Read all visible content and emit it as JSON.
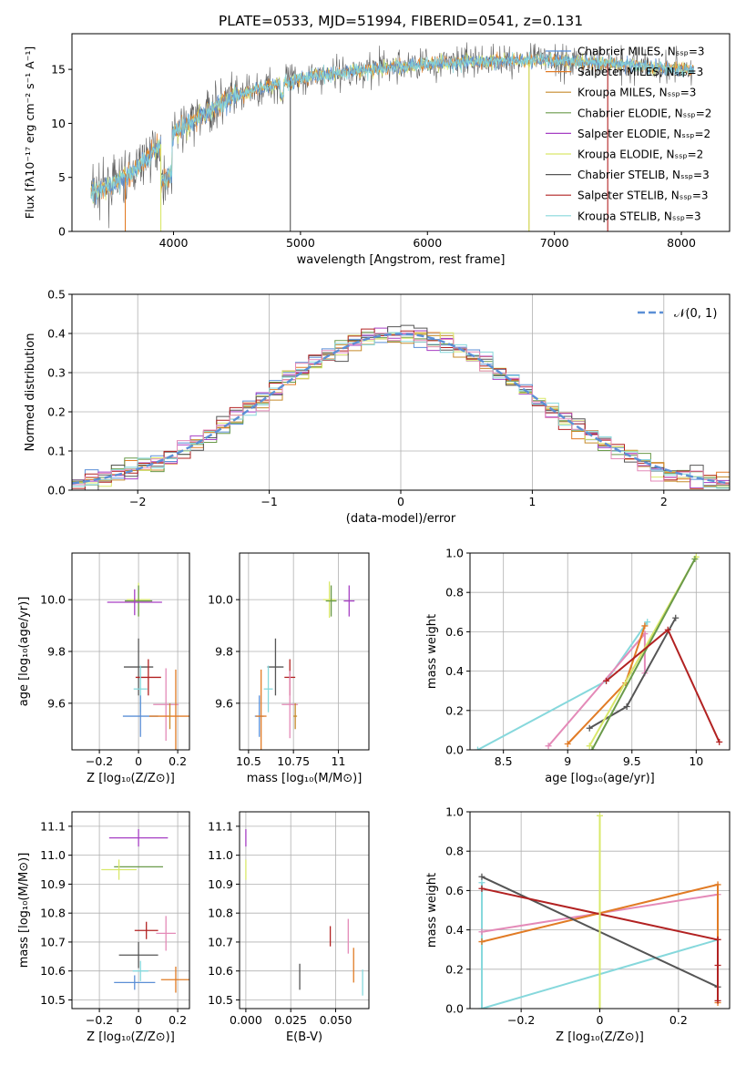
{
  "figure": {
    "title": "PLATE=0533, MJD=51994, FIBERID=0541, z=0.131",
    "colors": {
      "chabrier_miles": "#5b8fd6",
      "salpeter_miles": "#e17b25",
      "kroupa_miles": "#c58a2a",
      "chabrier_elodie": "#6a9a4a",
      "salpeter_elodie": "#a63fc4",
      "kroupa_elodie": "#d9e86a",
      "chabrier_stelib": "#555555",
      "salpeter_stelib": "#b22222",
      "kroupa_stelib": "#86d8dc",
      "pink": "#e48ab8",
      "normal": "#5b8fd6"
    }
  },
  "chart_data": [
    {
      "id": "spectrum",
      "type": "line",
      "xlabel": "wavelength [Angstrom, rest frame]",
      "ylabel": "Flux [fλ10⁻¹⁷ erg cm⁻² s⁻¹ A⁻¹]",
      "xlim": [
        3200,
        8380
      ],
      "ylim": [
        0,
        18.3
      ],
      "xticks": [
        4000,
        5000,
        6000,
        7000,
        8000
      ],
      "yticks": [
        0,
        5,
        10,
        15
      ],
      "legend_position": "top-right",
      "legend": [
        "Chabrier MILES, Nₛₛₚ=3",
        "Salpeter MILES, Nₛₛₚ=3",
        "Kroupa MILES, Nₛₛₚ=3",
        "Chabrier ELODIE, Nₛₛₚ=2",
        "Salpeter ELODIE, Nₛₛₚ=2",
        "Kroupa ELODIE, Nₛₛₚ=2",
        "Chabrier STELIB, Nₛₛₚ=3",
        "Salpeter STELIB, Nₛₛₚ=3",
        "Kroupa STELIB, Nₛₛₚ=3"
      ],
      "continuum": [
        [
          3350,
          3.6
        ],
        [
          3500,
          4.2
        ],
        [
          3650,
          5.2
        ],
        [
          3800,
          7.0
        ],
        [
          3950,
          8.6
        ],
        [
          4100,
          9.8
        ],
        [
          4300,
          11.3
        ],
        [
          4500,
          12.5
        ],
        [
          4700,
          13.3
        ],
        [
          4900,
          13.9
        ],
        [
          5100,
          14.4
        ],
        [
          5400,
          14.8
        ],
        [
          5700,
          15.2
        ],
        [
          6000,
          15.5
        ],
        [
          6300,
          15.7
        ],
        [
          6600,
          15.8
        ],
        [
          6900,
          15.9
        ],
        [
          7200,
          15.7
        ],
        [
          7500,
          15.5
        ],
        [
          7800,
          15.2
        ],
        [
          8100,
          14.9
        ]
      ],
      "dropouts": [
        [
          3620,
          0
        ],
        [
          3900,
          0
        ],
        [
          4920,
          0
        ],
        [
          6800,
          0
        ],
        [
          7420,
          0
        ]
      ]
    },
    {
      "id": "residuals",
      "type": "histogram",
      "xlabel": "(data-model)/error",
      "ylabel": "Normed distribution",
      "xlim": [
        -2.5,
        2.5
      ],
      "ylim": [
        0,
        0.5
      ],
      "xticks": [
        -2,
        -1,
        0,
        1,
        2
      ],
      "yticks": [
        0.0,
        0.1,
        0.2,
        0.3,
        0.4,
        0.5
      ],
      "legend": [
        "𝒩(0, 1)"
      ],
      "legend_position": "top-right",
      "bin_width": 0.1
    },
    {
      "id": "age_vs_Z",
      "type": "errorbar",
      "xlabel": "Z [log₁₀(Z/Z⊙)]",
      "ylabel": "age  [log₁₀(age/yr)]",
      "xlim": [
        -0.34,
        0.26
      ],
      "ylim": [
        9.42,
        10.18
      ],
      "xticks": [
        -0.2,
        0.0,
        0.2
      ],
      "yticks": [
        9.6,
        9.8,
        10.0
      ],
      "points": [
        {
          "c": "kroupa_elodie",
          "x": 0.0,
          "y": 10.0,
          "xe": 0.12,
          "ye": 0.13
        },
        {
          "c": "chabrier_elodie",
          "x": 0.0,
          "y": 9.995,
          "xe": 0.14,
          "ye": 0.12
        },
        {
          "c": "salpeter_elodie",
          "x": -0.02,
          "y": 9.99,
          "xe": 0.28,
          "ye": 0.1
        },
        {
          "c": "chabrier_stelib",
          "x": 0.0,
          "y": 9.74,
          "xe": 0.15,
          "ye": 0.22
        },
        {
          "c": "salpeter_stelib",
          "x": 0.05,
          "y": 9.7,
          "xe": 0.13,
          "ye": 0.14
        },
        {
          "c": "kroupa_stelib",
          "x": 0.01,
          "y": 9.655,
          "xe": 0.07,
          "ye": 0.18
        },
        {
          "c": "pink",
          "x": 0.14,
          "y": 9.595,
          "xe": 0.13,
          "ye": 0.28
        },
        {
          "c": "chabrier_miles",
          "x": 0.01,
          "y": 9.55,
          "xe": 0.18,
          "ye": 0.16
        },
        {
          "c": "salpeter_miles",
          "x": 0.19,
          "y": 9.55,
          "xe": 0.27,
          "ye": 0.36
        },
        {
          "c": "kroupa_miles",
          "x": 0.16,
          "y": 9.55,
          "xe": 0.0,
          "ye": 0.1
        }
      ]
    },
    {
      "id": "age_vs_mass",
      "type": "errorbar",
      "xlabel": "mass [log₁₀(M/M⊙)]",
      "ylabel": "",
      "xlim": [
        10.45,
        11.17
      ],
      "ylim": [
        9.42,
        10.18
      ],
      "xticks": [
        10.5,
        10.75,
        11.0
      ],
      "yticks": [
        9.6,
        9.8,
        10.0
      ],
      "points": [
        {
          "c": "kroupa_elodie",
          "x": 10.95,
          "y": 10.0,
          "xe": 0.07,
          "ye": 0.14
        },
        {
          "c": "chabrier_elodie",
          "x": 10.96,
          "y": 9.995,
          "xe": 0.06,
          "ye": 0.12
        },
        {
          "c": "salpeter_elodie",
          "x": 11.06,
          "y": 9.995,
          "xe": 0.06,
          "ye": 0.12
        },
        {
          "c": "chabrier_stelib",
          "x": 10.65,
          "y": 9.74,
          "xe": 0.09,
          "ye": 0.22
        },
        {
          "c": "salpeter_stelib",
          "x": 10.73,
          "y": 9.7,
          "xe": 0.06,
          "ye": 0.14
        },
        {
          "c": "kroupa_stelib",
          "x": 10.61,
          "y": 9.655,
          "xe": 0.05,
          "ye": 0.18
        },
        {
          "c": "pink",
          "x": 10.73,
          "y": 9.595,
          "xe": 0.09,
          "ye": 0.26
        },
        {
          "c": "chabrier_miles",
          "x": 10.56,
          "y": 9.55,
          "xe": 0.05,
          "ye": 0.16
        },
        {
          "c": "salpeter_miles",
          "x": 10.57,
          "y": 9.55,
          "xe": 0.06,
          "ye": 0.36
        },
        {
          "c": "kroupa_miles",
          "x": 10.76,
          "y": 9.55,
          "xe": 0.02,
          "ye": 0.1
        }
      ]
    },
    {
      "id": "weight_vs_age",
      "type": "line",
      "xlabel": "age  [log₁₀(age/yr)]",
      "ylabel": "mass weight",
      "xlim": [
        8.24,
        10.26
      ],
      "ylim": [
        0,
        1
      ],
      "xticks": [
        8.5,
        9.0,
        9.5,
        10.0
      ],
      "yticks": [
        0.0,
        0.2,
        0.4,
        0.6,
        0.8,
        1.0
      ],
      "series": [
        {
          "c": "kroupa_stelib",
          "x": [
            8.3,
            9.3,
            9.62
          ],
          "y": [
            0.0,
            0.35,
            0.65
          ]
        },
        {
          "c": "pink",
          "x": [
            8.85,
            9.6,
            9.6
          ],
          "y": [
            0.02,
            0.59,
            0.39
          ]
        },
        {
          "c": "salpeter_miles",
          "x": [
            9.0,
            9.45,
            9.6
          ],
          "y": [
            0.03,
            0.34,
            0.63
          ]
        },
        {
          "c": "chabrier_stelib",
          "x": [
            9.17,
            9.46,
            9.84
          ],
          "y": [
            0.11,
            0.22,
            0.67
          ]
        },
        {
          "c": "kroupa_elodie",
          "x": [
            9.17,
            10.0
          ],
          "y": [
            0.02,
            0.98
          ]
        },
        {
          "c": "chabrier_elodie",
          "x": [
            9.19,
            9.99
          ],
          "y": [
            0.0,
            0.97
          ]
        },
        {
          "c": "salpeter_stelib",
          "x": [
            9.3,
            9.78,
            10.18
          ],
          "y": [
            0.35,
            0.61,
            0.04
          ]
        }
      ]
    },
    {
      "id": "mass_vs_Z",
      "type": "errorbar",
      "xlabel": "Z [log₁₀(Z/Z⊙)]",
      "ylabel": "mass [log₁₀(M/M⊙)]",
      "xlim": [
        -0.34,
        0.26
      ],
      "ylim": [
        10.47,
        11.15
      ],
      "xticks": [
        -0.2,
        0.0,
        0.2
      ],
      "yticks": [
        10.5,
        10.6,
        10.7,
        10.8,
        10.9,
        11.0,
        11.1
      ],
      "points": [
        {
          "c": "salpeter_elodie",
          "x": 0.0,
          "y": 11.06,
          "xe": 0.3,
          "ye": 0.06
        },
        {
          "c": "chabrier_elodie",
          "x": 0.0,
          "y": 10.96,
          "xe": 0.25,
          "ye": 0.0
        },
        {
          "c": "kroupa_elodie",
          "x": -0.1,
          "y": 10.95,
          "xe": 0.18,
          "ye": 0.07
        },
        {
          "c": "salpeter_stelib",
          "x": 0.04,
          "y": 10.74,
          "xe": 0.12,
          "ye": 0.06
        },
        {
          "c": "pink",
          "x": 0.14,
          "y": 10.73,
          "xe": 0.1,
          "ye": 0.12
        },
        {
          "c": "chabrier_stelib",
          "x": 0.0,
          "y": 10.655,
          "xe": 0.2,
          "ye": 0.09
        },
        {
          "c": "kroupa_stelib",
          "x": 0.01,
          "y": 10.6,
          "xe": 0.08,
          "ye": 0.07
        },
        {
          "c": "salpeter_miles",
          "x": 0.19,
          "y": 10.57,
          "xe": 0.15,
          "ye": 0.09
        },
        {
          "c": "chabrier_miles",
          "x": -0.02,
          "y": 10.56,
          "xe": 0.21,
          "ye": 0.05
        }
      ]
    },
    {
      "id": "mass_vs_ebv",
      "type": "errorbar",
      "xlabel": "E(B-V)",
      "ylabel": "",
      "xlim": [
        -0.0035,
        0.0685
      ],
      "ylim": [
        10.47,
        11.15
      ],
      "xticks": [
        0.0,
        0.025,
        0.05
      ],
      "yticks": [
        10.5,
        10.6,
        10.7,
        10.8,
        10.9,
        11.0,
        11.1
      ],
      "tick_labels": [
        "0.000",
        "0.025",
        "0.050"
      ],
      "points": [
        {
          "c": "salpeter_elodie",
          "x": 0.0,
          "y": 11.06,
          "xe": 0,
          "ye": 0.06
        },
        {
          "c": "kroupa_elodie",
          "x": 0.0,
          "y": 10.95,
          "xe": 0,
          "ye": 0.07
        },
        {
          "c": "chabrier_stelib",
          "x": 0.03,
          "y": 10.58,
          "xe": 0,
          "ye": 0.09
        },
        {
          "c": "salpeter_stelib",
          "x": 0.047,
          "y": 10.72,
          "xe": 0,
          "ye": 0.07
        },
        {
          "c": "pink",
          "x": 0.057,
          "y": 10.72,
          "xe": 0,
          "ye": 0.12
        },
        {
          "c": "salpeter_miles",
          "x": 0.06,
          "y": 10.62,
          "xe": 0,
          "ye": 0.12
        },
        {
          "c": "kroupa_stelib",
          "x": 0.065,
          "y": 10.56,
          "xe": 0,
          "ye": 0.09
        }
      ]
    },
    {
      "id": "weight_vs_Z",
      "type": "line",
      "xlabel": "Z [log₁₀(Z/Z⊙)]",
      "ylabel": "mass weight",
      "xlim": [
        -0.33,
        0.33
      ],
      "ylim": [
        0,
        1
      ],
      "xticks": [
        -0.2,
        0.0,
        0.2
      ],
      "yticks": [
        0.0,
        0.2,
        0.4,
        0.6,
        0.8,
        1.0
      ],
      "series": [
        {
          "c": "kroupa_stelib",
          "x": [
            -0.3,
            -0.3,
            0.3
          ],
          "y": [
            0.64,
            0.0,
            0.35
          ]
        },
        {
          "c": "pink",
          "x": [
            -0.3,
            0.3
          ],
          "y": [
            0.39,
            0.58
          ]
        },
        {
          "c": "salpeter_miles",
          "x": [
            -0.3,
            0.3,
            0.3
          ],
          "y": [
            0.34,
            0.63,
            0.03
          ]
        },
        {
          "c": "chabrier_stelib",
          "x": [
            -0.3,
            0.3
          ],
          "y": [
            0.67,
            0.11
          ]
        },
        {
          "c": "salpeter_stelib",
          "x": [
            -0.3,
            0.3,
            0.3
          ],
          "y": [
            0.61,
            0.35,
            0.04
          ]
        },
        {
          "c": "kroupa_elodie",
          "x": [
            0.0,
            0.0
          ],
          "y": [
            0.0,
            0.98
          ]
        },
        {
          "c": "salpeter_stelib",
          "x": [
            0.3,
            0.3
          ],
          "y": [
            0.22,
            0.35
          ]
        }
      ]
    }
  ]
}
